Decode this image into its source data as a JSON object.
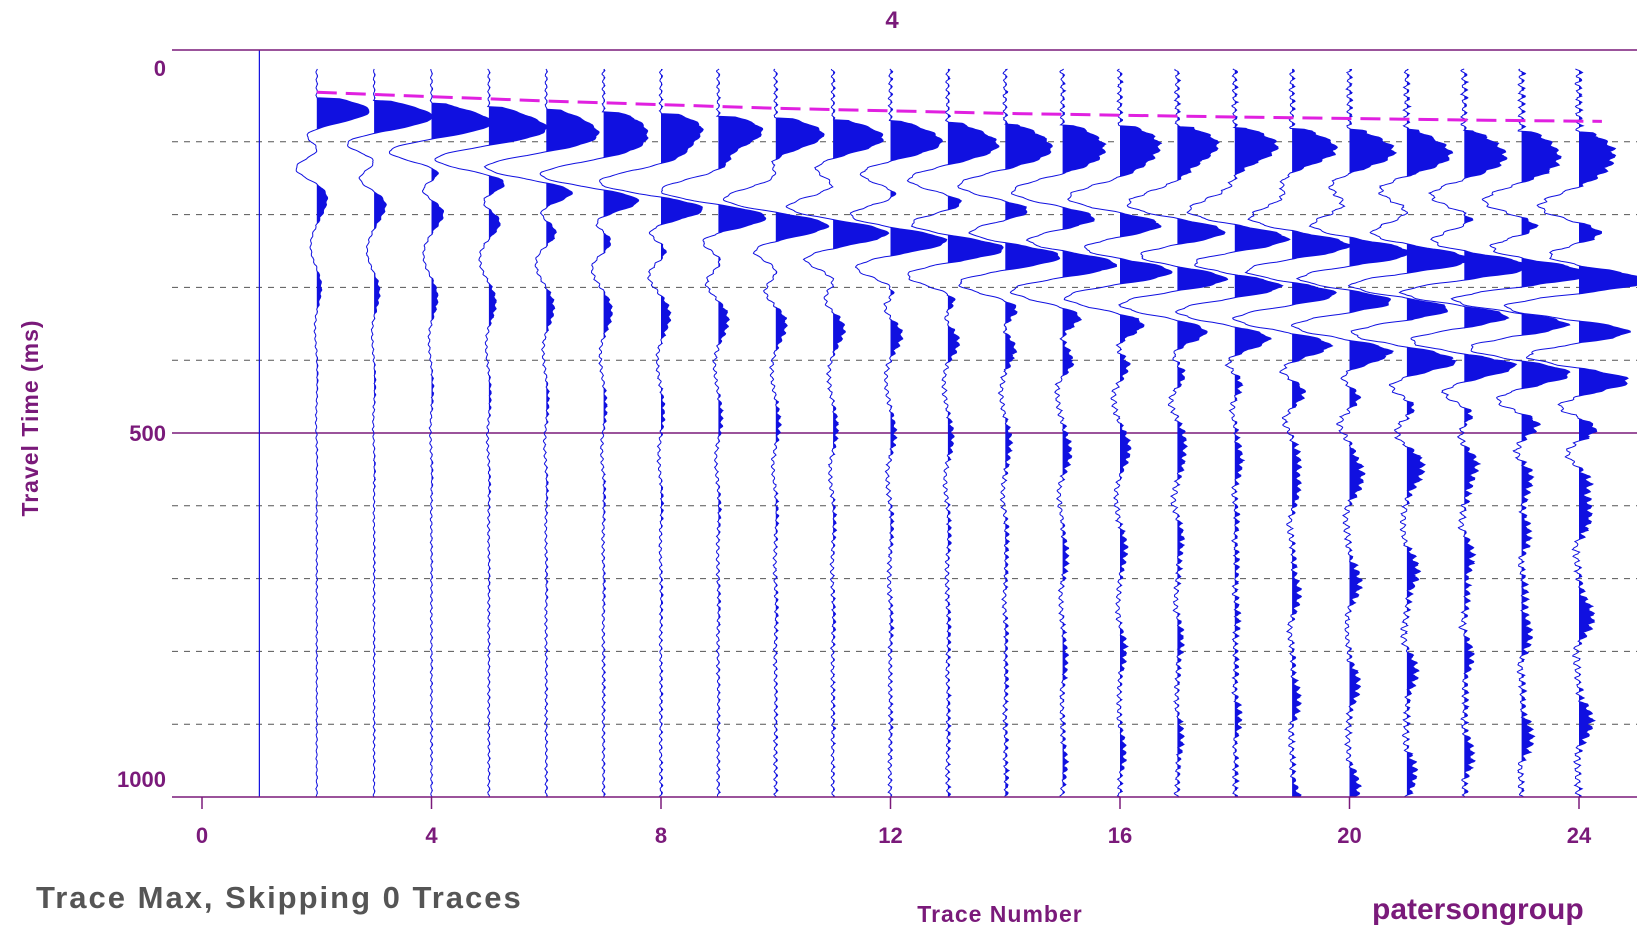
{
  "chart_data": {
    "type": "line",
    "subtype": "seismic-wiggle-traces",
    "title": "4",
    "xlabel": "Trace Number",
    "ylabel": "Travel Time (ms)",
    "xlim": [
      0,
      25.3
    ],
    "ylim": [
      1000,
      0
    ],
    "y_inverted": true,
    "x_ticks": [
      0,
      4,
      8,
      12,
      16,
      20,
      24
    ],
    "y_ticks": [
      0,
      500,
      1000
    ],
    "y_minor_gridlines": [
      100,
      200,
      300,
      400,
      600,
      700,
      800,
      900
    ],
    "grid": "dashed minor horizontal at 100 ms; solid at 0, 500, 1000",
    "traces": [
      {
        "trace": 1,
        "first_break_ms": null
      },
      {
        "trace": 2,
        "first_break_ms": 40
      },
      {
        "trace": 3,
        "first_break_ms": 44
      },
      {
        "trace": 4,
        "first_break_ms": 48
      },
      {
        "trace": 5,
        "first_break_ms": 52
      },
      {
        "trace": 6,
        "first_break_ms": 56
      },
      {
        "trace": 7,
        "first_break_ms": 59
      },
      {
        "trace": 8,
        "first_break_ms": 62
      },
      {
        "trace": 9,
        "first_break_ms": 65
      },
      {
        "trace": 10,
        "first_break_ms": 68
      },
      {
        "trace": 11,
        "first_break_ms": 70
      },
      {
        "trace": 12,
        "first_break_ms": 72
      },
      {
        "trace": 13,
        "first_break_ms": 74
      },
      {
        "trace": 14,
        "first_break_ms": 76
      },
      {
        "trace": 15,
        "first_break_ms": 78
      },
      {
        "trace": 16,
        "first_break_ms": 79
      },
      {
        "trace": 17,
        "first_break_ms": 80
      },
      {
        "trace": 18,
        "first_break_ms": 81
      },
      {
        "trace": 19,
        "first_break_ms": 82
      },
      {
        "trace": 20,
        "first_break_ms": 83
      },
      {
        "trace": 21,
        "first_break_ms": 84
      },
      {
        "trace": 22,
        "first_break_ms": 85
      },
      {
        "trace": 23,
        "first_break_ms": 86
      },
      {
        "trace": 24,
        "first_break_ms": 87
      }
    ],
    "first_break_pick": {
      "style": "dashed",
      "color": "#e020e0",
      "points": [
        [
          2,
          32
        ],
        [
          6,
          44
        ],
        [
          10,
          54
        ],
        [
          14,
          61
        ],
        [
          18,
          66
        ],
        [
          22,
          70
        ],
        [
          24.4,
          72
        ]
      ]
    },
    "trace_color": "#1010e0",
    "axis_color": "#7a1a7a"
  },
  "footer": {
    "caption": "Trace Max, Skipping 0 Traces",
    "brand": "patersongroup"
  }
}
